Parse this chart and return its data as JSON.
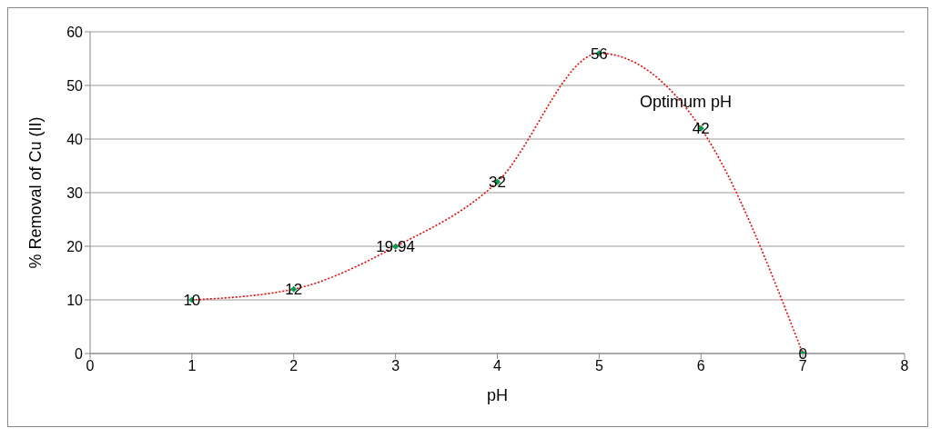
{
  "chart_data": {
    "type": "line",
    "xlabel": "pH",
    "ylabel": "% Removal of Cu (II)",
    "x": [
      1,
      2,
      3,
      4,
      5,
      6,
      7
    ],
    "series": [
      {
        "color": "#ff0000",
        "values": [
          10,
          12,
          19.94,
          32,
          56,
          42,
          0
        ]
      }
    ],
    "xlim": [
      0,
      8
    ],
    "xticks": [
      0,
      1,
      2,
      3,
      4,
      5,
      6,
      7,
      8
    ],
    "ylim": [
      0,
      60
    ],
    "yticks": [
      0,
      10,
      20,
      30,
      40,
      50,
      60
    ],
    "grid": "y",
    "marker": "diamond",
    "line_style": "dotted",
    "data_labels": true,
    "annotations": [
      {
        "text": "Optimum pH",
        "x": 5.85,
        "y": 47
      }
    ]
  }
}
